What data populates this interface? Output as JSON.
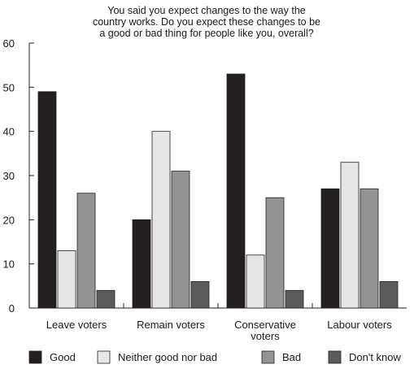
{
  "chart_data": {
    "type": "bar",
    "title": [
      "You said you expect changes to the way the",
      "country works. Do you expect these changes to be",
      "a good or bad thing for people like you, overall?"
    ],
    "xlabel": "",
    "ylabel": "",
    "ylim": [
      0,
      60
    ],
    "yticks": [
      0,
      10,
      20,
      30,
      40,
      50,
      60
    ],
    "grid": false,
    "legend_position": "bottom",
    "categories": [
      [
        "Leave voters"
      ],
      [
        "Remain voters"
      ],
      [
        "Conservative",
        "voters"
      ],
      [
        "Labour voters"
      ]
    ],
    "series": [
      {
        "name": "Good",
        "color": "#231f20",
        "values": [
          49,
          20,
          53,
          27
        ]
      },
      {
        "name": "Neither good nor bad",
        "color": "#e6e6e6",
        "values": [
          13,
          40,
          12,
          33
        ]
      },
      {
        "name": "Bad",
        "color": "#939393",
        "values": [
          26,
          31,
          25,
          27
        ]
      },
      {
        "name": "Don't know",
        "color": "#5c5c5c",
        "values": [
          4,
          6,
          4,
          6
        ]
      }
    ]
  }
}
